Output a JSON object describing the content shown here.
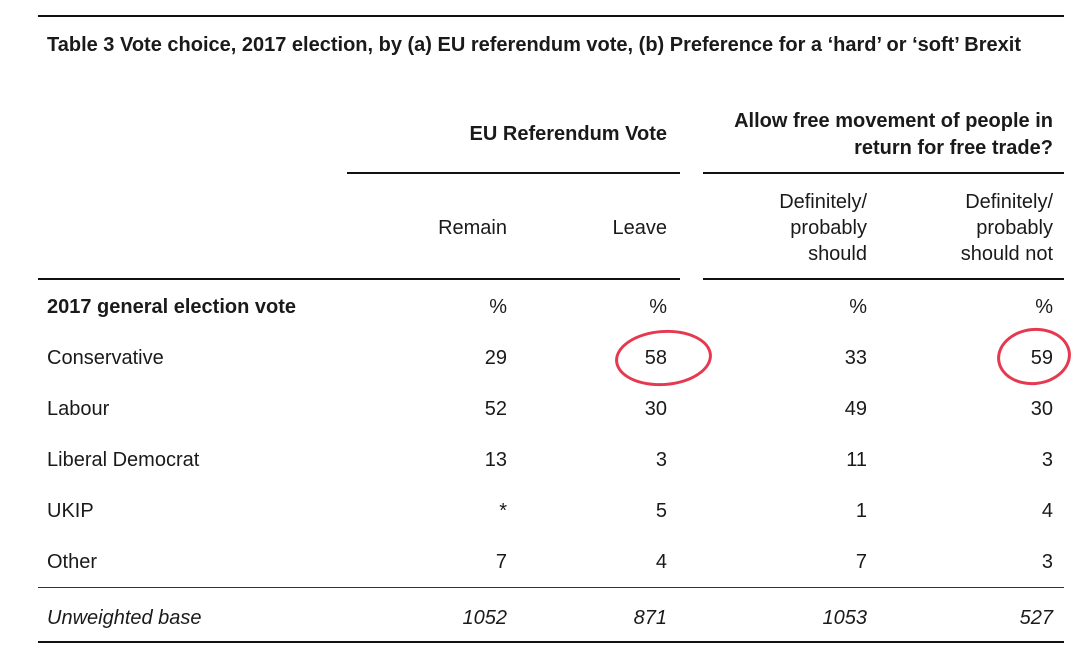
{
  "title": "Table 3 Vote choice, 2017 election, by (a) EU referendum vote, (b) Preference for a ‘hard’ or ‘soft’ Brexit",
  "groups": [
    {
      "label": "EU Referendum Vote"
    },
    {
      "label": "Allow free movement of people in return for free trade?"
    }
  ],
  "columns": [
    "Remain",
    "Leave",
    "Definitely/ probably should",
    "Definitely/ probably should not"
  ],
  "section_label": "2017 general election vote",
  "percent_row": [
    "%",
    "%",
    "%",
    "%"
  ],
  "rows": [
    {
      "label": "Conservative",
      "values": [
        "29",
        "58",
        "33",
        "59"
      ]
    },
    {
      "label": "Labour",
      "values": [
        "52",
        "30",
        "49",
        "30"
      ]
    },
    {
      "label": "Liberal Democrat",
      "values": [
        "13",
        "3",
        "11",
        "3"
      ]
    },
    {
      "label": "UKIP",
      "values": [
        "*",
        "5",
        "1",
        "4"
      ]
    },
    {
      "label": "Other",
      "values": [
        "7",
        "4",
        "7",
        "3"
      ]
    }
  ],
  "base": {
    "label": "Unweighted base",
    "values": [
      "1052",
      "871",
      "1053",
      "527"
    ]
  },
  "highlight_color": "#e53950"
}
